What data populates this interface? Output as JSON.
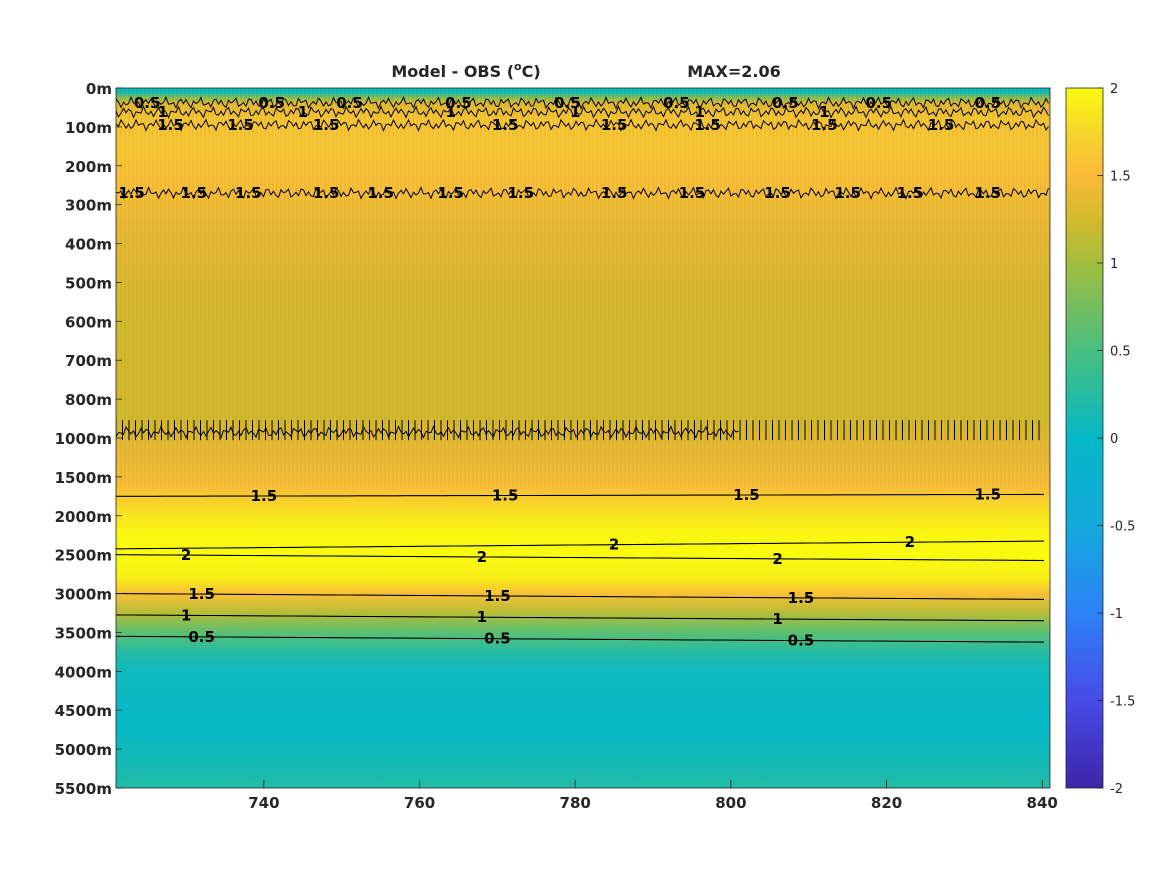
{
  "chart_data": {
    "type": "heatmap",
    "title": "Model - OBS (°C)",
    "title_main": "Model - OBS (",
    "title_unit_sup": "o",
    "title_unit": "C)",
    "max_label": "MAX=2.06",
    "xlabel": "",
    "ylabel": "",
    "xlim": [
      721,
      841
    ],
    "x_ticks": [
      740,
      760,
      780,
      800,
      820,
      840
    ],
    "y_tick_labels": [
      "0m",
      "100m",
      "200m",
      "300m",
      "400m",
      "500m",
      "600m",
      "700m",
      "800m",
      "1000m",
      "1500m",
      "2000m",
      "2500m",
      "3000m",
      "3500m",
      "4000m",
      "4500m",
      "5000m",
      "5500m"
    ],
    "y_scale_note": "piecewise depth axis: equal spacing per tick label",
    "colorbar": {
      "colormap": "parula",
      "range": [
        -2,
        2
      ],
      "ticks": [
        2,
        1.5,
        1,
        0.5,
        0,
        -0.5,
        -1,
        -1.5,
        -2
      ],
      "tick_labels": [
        "2",
        "1.5",
        "1",
        "0.5",
        "0",
        "-0.5",
        "-1",
        "-1.5",
        "-2"
      ]
    },
    "field_profile": [
      {
        "depth_index": 0.0,
        "value": 0.05
      },
      {
        "depth_index": 0.12,
        "value": 0.15
      },
      {
        "depth_index": 0.25,
        "value": 0.85
      },
      {
        "depth_index": 0.4,
        "value": 1.35
      },
      {
        "depth_index": 0.8,
        "value": 1.6
      },
      {
        "depth_index": 1.5,
        "value": 1.6
      },
      {
        "depth_index": 2.5,
        "value": 1.55
      },
      {
        "depth_index": 3.5,
        "value": 1.4
      },
      {
        "depth_index": 5.0,
        "value": 1.3
      },
      {
        "depth_index": 7.0,
        "value": 1.25
      },
      {
        "depth_index": 8.5,
        "value": 1.25
      },
      {
        "depth_index": 9.6,
        "value": 1.42
      },
      {
        "depth_index": 10.3,
        "value": 1.55
      },
      {
        "depth_index": 11.0,
        "value": 1.85
      },
      {
        "depth_index": 11.5,
        "value": 1.97
      },
      {
        "depth_index": 12.0,
        "value": 2.02
      },
      {
        "depth_index": 12.6,
        "value": 1.92
      },
      {
        "depth_index": 13.0,
        "value": 1.55
      },
      {
        "depth_index": 13.5,
        "value": 1.1
      },
      {
        "depth_index": 14.0,
        "value": 0.6
      },
      {
        "depth_index": 14.5,
        "value": 0.25
      },
      {
        "depth_index": 15.0,
        "value": 0.05
      },
      {
        "depth_index": 16.5,
        "value": 0.0
      },
      {
        "depth_index": 17.4,
        "value": 0.12
      },
      {
        "depth_index": 18.0,
        "value": 0.22
      }
    ],
    "contours": [
      {
        "level": 0.5,
        "label": "0.5",
        "depth_index": [
          0.38,
          0.38
        ],
        "noisy": true,
        "label_x": [
          725,
          741,
          751,
          765,
          779,
          793,
          807,
          819,
          833
        ]
      },
      {
        "level": 1,
        "label": "1",
        "depth_index": [
          0.62,
          0.62
        ],
        "noisy": true,
        "label_x": [
          727,
          745,
          764,
          780,
          796,
          812
        ]
      },
      {
        "level": 1.5,
        "label": "1.5",
        "depth_index": [
          0.95,
          0.95
        ],
        "noisy": true,
        "label_x": [
          728,
          737,
          748,
          771,
          785,
          797,
          812,
          827
        ]
      },
      {
        "level": 1.5,
        "label": "1.5",
        "depth_index": [
          2.7,
          2.7
        ],
        "noisy": true,
        "label_x": [
          723,
          731,
          738,
          748,
          755,
          764,
          773,
          785,
          795,
          806,
          815,
          823,
          833
        ]
      },
      {
        "level": 1,
        "label": "1",
        "depth_index": [
          8.85,
          8.85
        ],
        "noisy": true,
        "label_x": [],
        "extent_x": [
          721,
          801
        ]
      },
      {
        "level": 1.5,
        "label": "1.5",
        "depth_index": [
          10.5,
          10.45
        ],
        "noisy": false,
        "label_x": [
          740,
          771,
          802,
          833
        ]
      },
      {
        "level": 2,
        "label": "2",
        "depth_index": [
          11.85,
          11.65
        ],
        "noisy": false,
        "label_x": [
          823,
          785
        ],
        "shape": "upper"
      },
      {
        "level": 2,
        "label": "2",
        "depth_index": [
          12.0,
          12.15
        ],
        "noisy": false,
        "label_x": [
          730,
          768,
          806
        ],
        "shape": "lower"
      },
      {
        "level": 1.5,
        "label": "1.5",
        "depth_index": [
          13.0,
          13.15
        ],
        "noisy": false,
        "label_x": [
          732,
          770,
          809
        ]
      },
      {
        "level": 1,
        "label": "1",
        "depth_index": [
          13.55,
          13.7
        ],
        "noisy": false,
        "label_x": [
          730,
          768,
          806
        ]
      },
      {
        "level": 0.5,
        "label": "0.5",
        "depth_index": [
          14.1,
          14.25
        ],
        "noisy": false,
        "label_x": [
          732,
          770,
          809
        ]
      }
    ]
  }
}
